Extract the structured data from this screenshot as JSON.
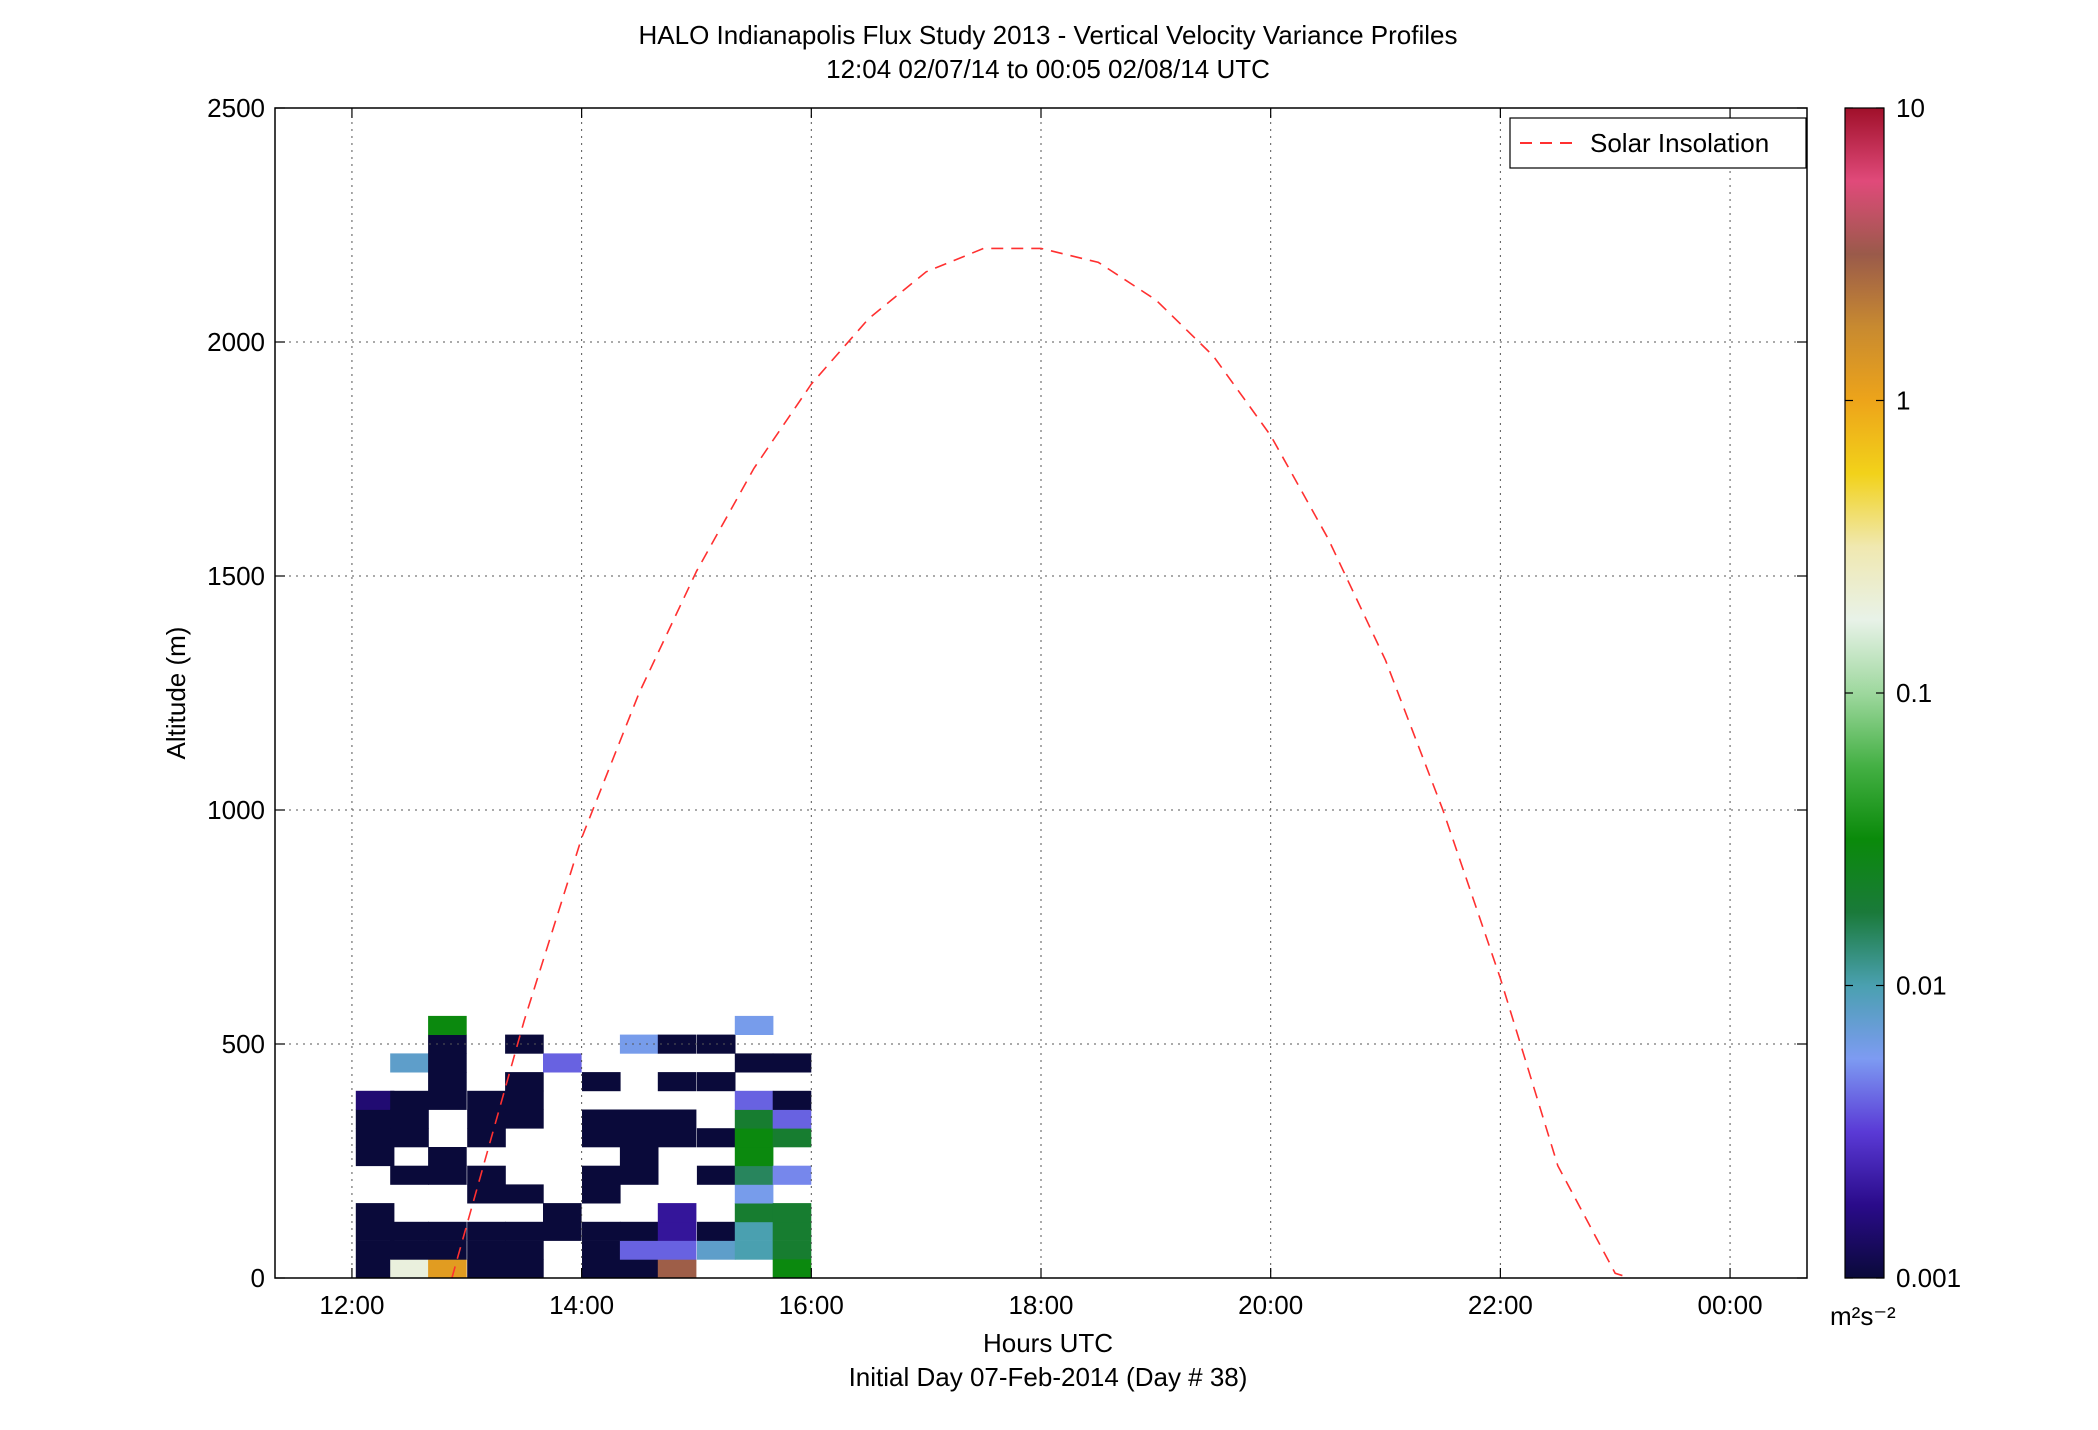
{
  "chart_data": {
    "type": "heatmap",
    "title": "HALO Indianapolis Flux Study 2013 - Vertical Velocity Variance Profiles",
    "subtitle": "12:04 02/07/14 to 00:05 02/08/14  UTC",
    "xlabel": "Hours UTC",
    "xlabel2": "Initial Day 07-Feb-2014 (Day # 38)",
    "ylabel": "Altitude (m)",
    "xlim": [
      11.33,
      24.67
    ],
    "ylim": [
      0,
      2500
    ],
    "x_ticks": [
      12,
      14,
      16,
      18,
      20,
      22,
      24
    ],
    "x_tick_labels": [
      "12:00",
      "14:00",
      "16:00",
      "18:00",
      "20:00",
      "22:00",
      "00:00"
    ],
    "y_ticks": [
      0,
      500,
      1000,
      1500,
      2000,
      2500
    ],
    "y_tick_labels": [
      "0",
      "500",
      "1000",
      "1500",
      "2000",
      "2500"
    ],
    "grid": true,
    "legend": {
      "entries": [
        "Solar Insolation"
      ],
      "placement": "top-right"
    },
    "colorbar": {
      "scale": "log",
      "range": [
        0.001,
        10
      ],
      "tick_values": [
        0.001,
        0.01,
        0.1,
        1,
        10
      ],
      "tick_labels": [
        "0.001",
        "0.01",
        "0.1",
        "1",
        "10"
      ],
      "units": "m²s⁻²",
      "colors": [
        "#0a0a3a",
        "#2a0b8a",
        "#5a3ad6",
        "#7d9bf2",
        "#4aa0b0",
        "#1a7a3a",
        "#0a8a0a",
        "#44b044",
        "#9ed89e",
        "#e8f2e8",
        "#f0e8b0",
        "#f2d21a",
        "#eda41a",
        "#c88a30",
        "#9a5a4a",
        "#e04a7a",
        "#a0102a"
      ]
    },
    "bin_width_hours": 0.333,
    "bin_height_m": 40,
    "series": [
      {
        "name": "Solar Insolation",
        "style": "red dashed",
        "x": [
          12.87,
          13.5,
          14.0,
          14.5,
          15.0,
          15.5,
          16.0,
          16.5,
          17.0,
          17.5,
          18.0,
          18.5,
          19.0,
          19.5,
          20.0,
          20.5,
          21.0,
          21.5,
          22.0,
          22.5,
          23.0,
          23.13
        ],
        "y": [
          0,
          550,
          940,
          1250,
          1510,
          1730,
          1910,
          2050,
          2150,
          2200,
          2200,
          2170,
          2090,
          1970,
          1800,
          1580,
          1320,
          1000,
          640,
          240,
          10,
          0
        ]
      }
    ],
    "cells": [
      [
        12.2,
        0.001,
        0.0
      ],
      [
        12.2,
        0.001,
        40
      ],
      [
        12.2,
        0.001,
        80
      ],
      [
        12.2,
        0.001,
        120
      ],
      [
        12.2,
        0.001,
        240
      ],
      [
        12.2,
        0.001,
        280
      ],
      [
        12.2,
        0.001,
        320
      ],
      [
        12.2,
        0.0015,
        360
      ],
      [
        12.5,
        0.2,
        0.0
      ],
      [
        12.5,
        0.001,
        40
      ],
      [
        12.5,
        0.001,
        80
      ],
      [
        12.5,
        0.001,
        200
      ],
      [
        12.5,
        0.001,
        280
      ],
      [
        12.5,
        0.001,
        320
      ],
      [
        12.5,
        0.001,
        360
      ],
      [
        12.5,
        0.008,
        440
      ],
      [
        12.83,
        1.2,
        0.0
      ],
      [
        12.83,
        0.001,
        40
      ],
      [
        12.83,
        0.001,
        80
      ],
      [
        12.83,
        0.001,
        200
      ],
      [
        12.83,
        0.001,
        240
      ],
      [
        12.83,
        0.001,
        360
      ],
      [
        12.83,
        0.001,
        400
      ],
      [
        12.83,
        0.001,
        440
      ],
      [
        12.83,
        0.001,
        480
      ],
      [
        12.83,
        0.03,
        520
      ],
      [
        13.17,
        0.001,
        0.0
      ],
      [
        13.17,
        0.001,
        40
      ],
      [
        13.17,
        0.001,
        80
      ],
      [
        13.17,
        0.001,
        160
      ],
      [
        13.17,
        0.001,
        200
      ],
      [
        13.17,
        0.001,
        280
      ],
      [
        13.17,
        0.001,
        320
      ],
      [
        13.17,
        0.001,
        360
      ],
      [
        13.5,
        0.001,
        0.0
      ],
      [
        13.5,
        0.001,
        40
      ],
      [
        13.5,
        0.001,
        80
      ],
      [
        13.5,
        0.001,
        160
      ],
      [
        13.5,
        0.001,
        320
      ],
      [
        13.5,
        0.001,
        360
      ],
      [
        13.5,
        0.001,
        400
      ],
      [
        13.5,
        0.001,
        480
      ],
      [
        13.83,
        0.001,
        80
      ],
      [
        13.83,
        0.001,
        120
      ],
      [
        13.83,
        0.004,
        440
      ],
      [
        14.17,
        0.001,
        0.0
      ],
      [
        14.17,
        0.001,
        40
      ],
      [
        14.17,
        0.001,
        80
      ],
      [
        14.17,
        0.001,
        160
      ],
      [
        14.17,
        0.001,
        200
      ],
      [
        14.17,
        0.001,
        280
      ],
      [
        14.17,
        0.001,
        320
      ],
      [
        14.17,
        0.001,
        400
      ],
      [
        14.5,
        0.001,
        0.0
      ],
      [
        14.5,
        0.004,
        40
      ],
      [
        14.5,
        0.001,
        80
      ],
      [
        14.5,
        0.001,
        200
      ],
      [
        14.5,
        0.001,
        240
      ],
      [
        14.5,
        0.001,
        280
      ],
      [
        14.5,
        0.001,
        320
      ],
      [
        14.5,
        0.006,
        480
      ],
      [
        14.83,
        3.0,
        0.0
      ],
      [
        14.83,
        0.004,
        40
      ],
      [
        14.83,
        0.002,
        80
      ],
      [
        14.83,
        0.002,
        120
      ],
      [
        14.83,
        0.001,
        280
      ],
      [
        14.83,
        0.001,
        320
      ],
      [
        14.83,
        0.001,
        400
      ],
      [
        14.83,
        0.001,
        480
      ],
      [
        15.17,
        0.008,
        40
      ],
      [
        15.17,
        0.001,
        80
      ],
      [
        15.17,
        0.001,
        200
      ],
      [
        15.17,
        0.001,
        280
      ],
      [
        15.17,
        0.001,
        400
      ],
      [
        15.17,
        0.001,
        480
      ],
      [
        15.5,
        0.01,
        40
      ],
      [
        15.5,
        0.01,
        80
      ],
      [
        15.5,
        0.02,
        120
      ],
      [
        15.5,
        0.006,
        160
      ],
      [
        15.5,
        0.015,
        200
      ],
      [
        15.5,
        0.03,
        240
      ],
      [
        15.5,
        0.03,
        280
      ],
      [
        15.5,
        0.02,
        320
      ],
      [
        15.5,
        0.004,
        360
      ],
      [
        15.5,
        0.001,
        440
      ],
      [
        15.5,
        0.006,
        520
      ],
      [
        15.83,
        0.02,
        40
      ],
      [
        15.83,
        0.02,
        80
      ],
      [
        15.83,
        0.02,
        120
      ],
      [
        15.83,
        0.005,
        200
      ],
      [
        15.83,
        0.02,
        280
      ],
      [
        15.83,
        0.004,
        320
      ],
      [
        15.83,
        0.001,
        360
      ],
      [
        15.83,
        0.001,
        440
      ],
      [
        15.83,
        0.03,
        0.0
      ]
    ]
  }
}
